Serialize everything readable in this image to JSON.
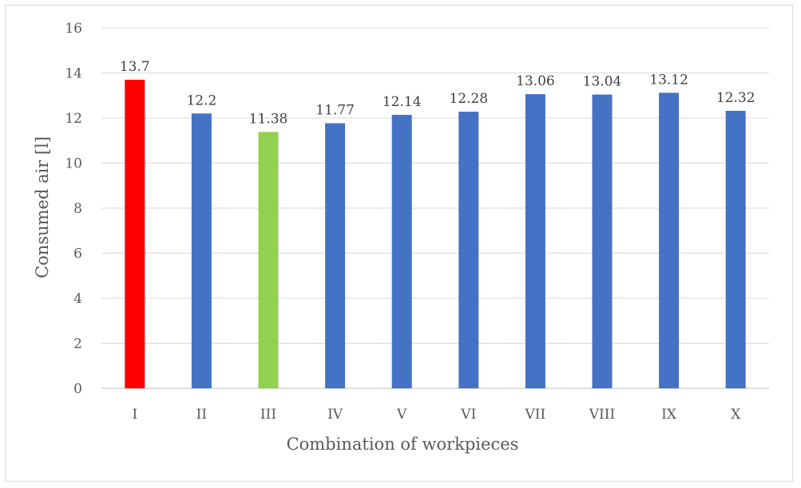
{
  "chart_data": {
    "type": "bar",
    "title": "",
    "xlabel": "Combination of workpieces",
    "ylabel": "Consumed air [l]",
    "ylim": [
      0,
      16
    ],
    "yticks": [
      0,
      2,
      4,
      6,
      8,
      10,
      12,
      14,
      16
    ],
    "ytick_labels": [
      "0",
      "2",
      "4",
      "6",
      "8",
      "10",
      "12",
      "14",
      "16"
    ],
    "grid": true,
    "legend": "none",
    "categories": [
      "I",
      "II",
      "III",
      "IV",
      "V",
      "VI",
      "VII",
      "VIII",
      "IX",
      "X"
    ],
    "values": [
      13.7,
      12.2,
      11.38,
      11.77,
      12.14,
      12.28,
      13.06,
      13.04,
      13.12,
      12.32
    ],
    "data_labels": [
      "13.7",
      "12.2",
      "11.38",
      "11.77",
      "12.14",
      "12.28",
      "13.06",
      "13.04",
      "13.12",
      "12.32"
    ],
    "colors": [
      "#ff0000",
      "#4472c4",
      "#92d050",
      "#4472c4",
      "#4472c4",
      "#4472c4",
      "#4472c4",
      "#4472c4",
      "#4472c4",
      "#4472c4"
    ],
    "gridline_color": "#d9d9d9",
    "axis_color": "#bfbfbf"
  }
}
